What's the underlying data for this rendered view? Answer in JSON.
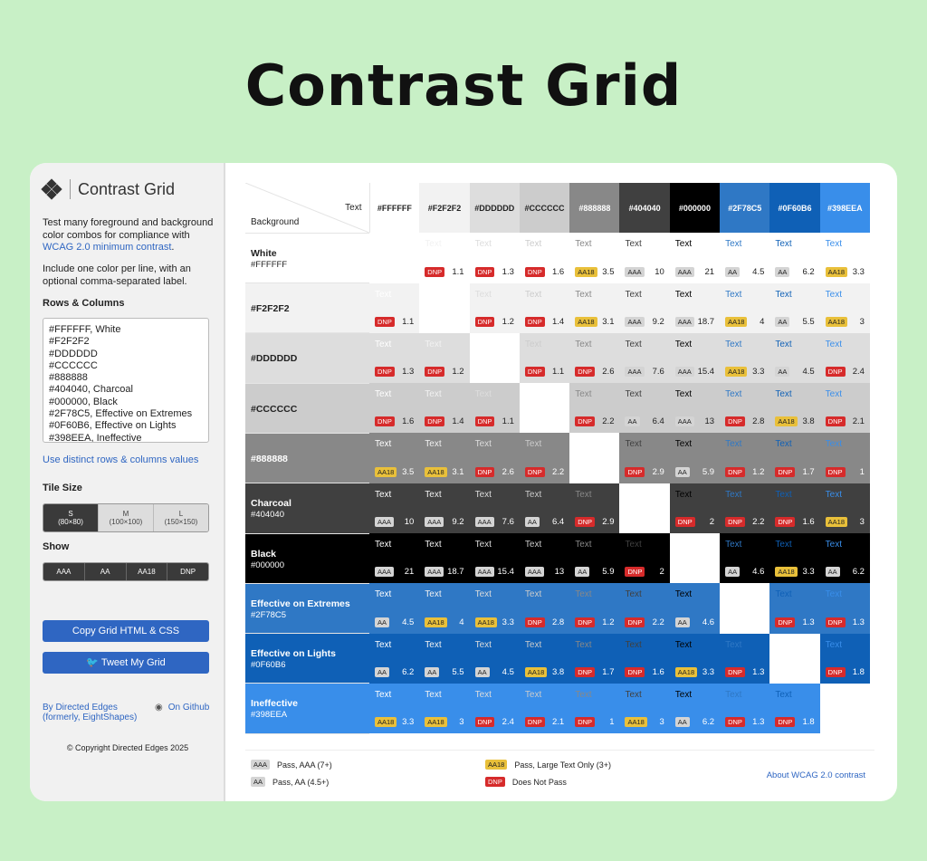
{
  "hero_title": "Contrast Grid",
  "sidebar": {
    "brand": "Contrast Grid",
    "intro_before": "Test many foreground and background color combos for compliance with ",
    "intro_link": "WCAG 2.0 minimum contrast",
    "intro_after": ".",
    "intro2": "Include one color per line, with an optional comma-separated label.",
    "rows_columns_label": "Rows & Columns",
    "textarea_value": "#FFFFFF, White\n#F2F2F2\n#DDDDDD\n#CCCCCC\n#888888\n#404040, Charcoal\n#000000, Black\n#2F78C5, Effective on Extremes\n#0F60B6, Effective on Lights\n#398EEA, Ineffective",
    "distinct_link": "Use distinct rows & columns values",
    "tile_size_label": "Tile Size",
    "tile_sizes": [
      {
        "name": "S",
        "dim": "(80×80)",
        "selected": true
      },
      {
        "name": "M",
        "dim": "(100×100)",
        "selected": false
      },
      {
        "name": "L",
        "dim": "(150×150)",
        "selected": false
      }
    ],
    "show_label": "Show",
    "show_options": [
      "AAA",
      "AA",
      "AA18",
      "DNP"
    ],
    "copy_button": "Copy Grid HTML & CSS",
    "tweet_button": "Tweet My Grid",
    "by_link": "By Directed Edges (formerly, EightShapes)",
    "github_link": "On Github",
    "copyright": "© Copyright Directed Edges 2025"
  },
  "grid": {
    "corner_text": "Text",
    "corner_background": "Background",
    "cell_text": "Text",
    "columns": [
      "#FFFFFF",
      "#F2F2F2",
      "#DDDDDD",
      "#CCCCCC",
      "#888888",
      "#404040",
      "#000000",
      "#2F78C5",
      "#0F60B6",
      "#398EEA"
    ],
    "rows": [
      {
        "name": "White",
        "hex": "#FFFFFF",
        "bg": "#FFFFFF"
      },
      {
        "name": "",
        "hex": "#F2F2F2",
        "bg": "#F2F2F2"
      },
      {
        "name": "",
        "hex": "#DDDDDD",
        "bg": "#DDDDDD"
      },
      {
        "name": "",
        "hex": "#CCCCCC",
        "bg": "#CCCCCC"
      },
      {
        "name": "",
        "hex": "#888888",
        "bg": "#888888"
      },
      {
        "name": "Charcoal",
        "hex": "#404040",
        "bg": "#404040"
      },
      {
        "name": "Black",
        "hex": "#000000",
        "bg": "#000000"
      },
      {
        "name": "Effective on Extremes",
        "hex": "#2F78C5",
        "bg": "#2F78C5"
      },
      {
        "name": "Effective on Lights",
        "hex": "#0F60B6",
        "bg": "#0F60B6"
      },
      {
        "name": "Ineffective",
        "hex": "#398EEA",
        "bg": "#398EEA"
      }
    ],
    "cells": [
      [
        null,
        [
          "DNP",
          "1.1"
        ],
        [
          "DNP",
          "1.3"
        ],
        [
          "DNP",
          "1.6"
        ],
        [
          "AA18",
          "3.5"
        ],
        [
          "AAA",
          "10"
        ],
        [
          "AAA",
          "21"
        ],
        [
          "AA",
          "4.5"
        ],
        [
          "AA",
          "6.2"
        ],
        [
          "AA18",
          "3.3"
        ]
      ],
      [
        [
          "DNP",
          "1.1"
        ],
        null,
        [
          "DNP",
          "1.2"
        ],
        [
          "DNP",
          "1.4"
        ],
        [
          "AA18",
          "3.1"
        ],
        [
          "AAA",
          "9.2"
        ],
        [
          "AAA",
          "18.7"
        ],
        [
          "AA18",
          "4"
        ],
        [
          "AA",
          "5.5"
        ],
        [
          "AA18",
          "3"
        ]
      ],
      [
        [
          "DNP",
          "1.3"
        ],
        [
          "DNP",
          "1.2"
        ],
        null,
        [
          "DNP",
          "1.1"
        ],
        [
          "DNP",
          "2.6"
        ],
        [
          "AAA",
          "7.6"
        ],
        [
          "AAA",
          "15.4"
        ],
        [
          "AA18",
          "3.3"
        ],
        [
          "AA",
          "4.5"
        ],
        [
          "DNP",
          "2.4"
        ]
      ],
      [
        [
          "DNP",
          "1.6"
        ],
        [
          "DNP",
          "1.4"
        ],
        [
          "DNP",
          "1.1"
        ],
        null,
        [
          "DNP",
          "2.2"
        ],
        [
          "AA",
          "6.4"
        ],
        [
          "AAA",
          "13"
        ],
        [
          "DNP",
          "2.8"
        ],
        [
          "AA18",
          "3.8"
        ],
        [
          "DNP",
          "2.1"
        ]
      ],
      [
        [
          "AA18",
          "3.5"
        ],
        [
          "AA18",
          "3.1"
        ],
        [
          "DNP",
          "2.6"
        ],
        [
          "DNP",
          "2.2"
        ],
        null,
        [
          "DNP",
          "2.9"
        ],
        [
          "AA",
          "5.9"
        ],
        [
          "DNP",
          "1.2"
        ],
        [
          "DNP",
          "1.7"
        ],
        [
          "DNP",
          "1"
        ]
      ],
      [
        [
          "AAA",
          "10"
        ],
        [
          "AAA",
          "9.2"
        ],
        [
          "AAA",
          "7.6"
        ],
        [
          "AA",
          "6.4"
        ],
        [
          "DNP",
          "2.9"
        ],
        null,
        [
          "DNP",
          "2"
        ],
        [
          "DNP",
          "2.2"
        ],
        [
          "DNP",
          "1.6"
        ],
        [
          "AA18",
          "3"
        ]
      ],
      [
        [
          "AAA",
          "21"
        ],
        [
          "AAA",
          "18.7"
        ],
        [
          "AAA",
          "15.4"
        ],
        [
          "AAA",
          "13"
        ],
        [
          "AA",
          "5.9"
        ],
        [
          "DNP",
          "2"
        ],
        null,
        [
          "AA",
          "4.6"
        ],
        [
          "AA18",
          "3.3"
        ],
        [
          "AA",
          "6.2"
        ]
      ],
      [
        [
          "AA",
          "4.5"
        ],
        [
          "AA18",
          "4"
        ],
        [
          "AA18",
          "3.3"
        ],
        [
          "DNP",
          "2.8"
        ],
        [
          "DNP",
          "1.2"
        ],
        [
          "DNP",
          "2.2"
        ],
        [
          "AA",
          "4.6"
        ],
        null,
        [
          "DNP",
          "1.3"
        ],
        [
          "DNP",
          "1.3"
        ]
      ],
      [
        [
          "AA",
          "6.2"
        ],
        [
          "AA",
          "5.5"
        ],
        [
          "AA",
          "4.5"
        ],
        [
          "AA18",
          "3.8"
        ],
        [
          "DNP",
          "1.7"
        ],
        [
          "DNP",
          "1.6"
        ],
        [
          "AA18",
          "3.3"
        ],
        [
          "DNP",
          "1.3"
        ],
        null,
        [
          "DNP",
          "1.8"
        ]
      ],
      [
        [
          "AA18",
          "3.3"
        ],
        [
          "AA18",
          "3"
        ],
        [
          "DNP",
          "2.4"
        ],
        [
          "DNP",
          "2.1"
        ],
        [
          "DNP",
          "1"
        ],
        [
          "AA18",
          "3"
        ],
        [
          "AA",
          "6.2"
        ],
        [
          "DNP",
          "1.3"
        ],
        [
          "DNP",
          "1.8"
        ],
        null
      ]
    ]
  },
  "legend": {
    "items": [
      {
        "badge": "AAA",
        "label": "Pass, AAA (7+)"
      },
      {
        "badge": "AA",
        "label": "Pass, AA (4.5+)"
      },
      {
        "badge": "AA18",
        "label": "Pass, Large Text Only (3+)"
      },
      {
        "badge": "DNP",
        "label": "Does Not Pass"
      }
    ],
    "about_link": "About WCAG 2.0 contrast"
  },
  "colors": {
    "page_bg": "#c8f0c6",
    "accent": "#2f66c2",
    "dnp": "#d62b2b",
    "aa18": "#e9c03a"
  }
}
